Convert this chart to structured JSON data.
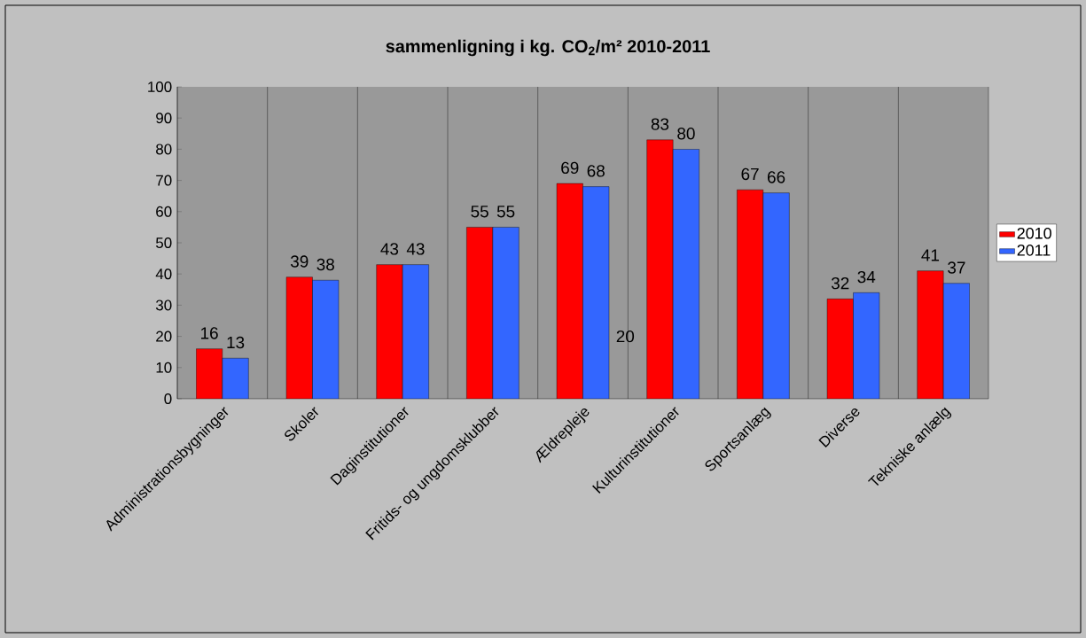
{
  "chart_data": {
    "type": "bar",
    "title": "sammenligning i kg. CO$_{2}$/m² 2010-2011",
    "categories": [
      "Administrationsbygninger",
      "Skoler",
      "Daginstitutioner",
      "Fritids- og ungdomsklubber",
      "Ældrepleje",
      "Kulturinstitutioner",
      "Sportsanlæg",
      "Diverse",
      "Tekniske anlælg"
    ],
    "series": [
      {
        "name": "2010",
        "color": "#ff0000",
        "values": [
          16,
          39,
          43,
          55,
          69,
          83,
          67,
          32,
          41
        ]
      },
      {
        "name": "2011",
        "color": "#3366ff",
        "values": [
          13,
          38,
          43,
          55,
          68,
          80,
          66,
          34,
          37
        ]
      }
    ],
    "ylim": [
      0,
      100
    ],
    "yticks": [
      0,
      10,
      20,
      30,
      40,
      50,
      60,
      70,
      80,
      90,
      100
    ],
    "grid": "x",
    "legend": "right",
    "data_labels": true,
    "annotations": [
      "20"
    ]
  }
}
